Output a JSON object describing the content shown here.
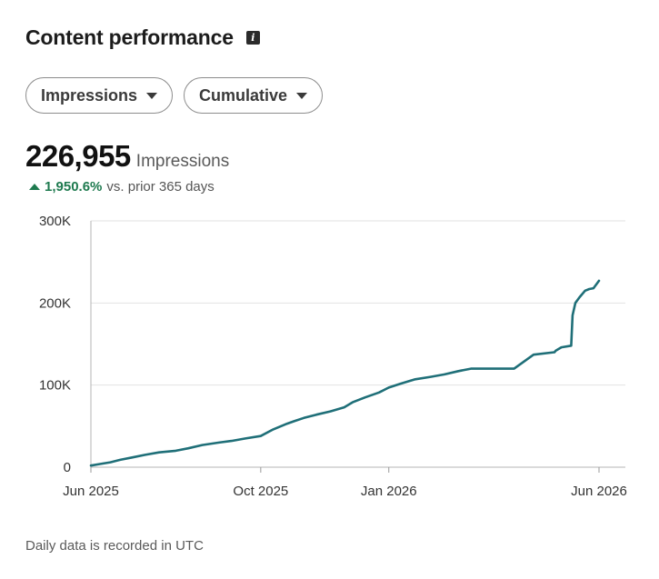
{
  "header": {
    "title": "Content performance",
    "info_icon": "info-icon"
  },
  "filters": [
    {
      "label": "Impressions",
      "icon": "chevron-down-icon"
    },
    {
      "label": "Cumulative",
      "icon": "chevron-down-icon"
    }
  ],
  "metric": {
    "value": "226,955",
    "label": "Impressions",
    "change": "1,950.6%",
    "change_label": "vs. prior 365 days",
    "change_icon": "triangle-up-icon",
    "change_color": "#1e7a4f"
  },
  "footnote": "Daily data is recorded in UTC",
  "chart_data": {
    "type": "line",
    "title": "",
    "xlabel": "",
    "ylabel": "",
    "ylim": [
      0,
      300000
    ],
    "yticks": [
      0,
      100000,
      200000,
      300000
    ],
    "ytick_labels": [
      "0",
      "100K",
      "200K",
      "300K"
    ],
    "xticks": [
      "2025-06-01",
      "2025-10-01",
      "2026-01-01",
      "2026-06-01"
    ],
    "xtick_labels": [
      "Jun 2025",
      "Oct 2025",
      "Jan 2026",
      "Jun 2026"
    ],
    "grid": true,
    "line_color": "#1f6f78",
    "series": [
      {
        "x": [
          "2025-06-01",
          "2025-06-08",
          "2025-06-15",
          "2025-06-22",
          "2025-07-01",
          "2025-07-10",
          "2025-07-20",
          "2025-08-01",
          "2025-08-10",
          "2025-08-20",
          "2025-09-01",
          "2025-09-10",
          "2025-09-20",
          "2025-10-01",
          "2025-10-10",
          "2025-10-20",
          "2025-10-25",
          "2025-11-01",
          "2025-11-10",
          "2025-11-20",
          "2025-11-30",
          "2025-12-05",
          "2025-12-06",
          "2025-12-15",
          "2025-12-25",
          "2026-01-01",
          "2026-01-10",
          "2026-01-20",
          "2026-01-31",
          "2026-02-10",
          "2026-02-20",
          "2026-03-01",
          "2026-03-10",
          "2026-03-20",
          "2026-04-01",
          "2026-04-15",
          "2026-04-30",
          "2026-05-01",
          "2026-05-05",
          "2026-05-12",
          "2026-05-13",
          "2026-05-15",
          "2026-05-18",
          "2026-05-22",
          "2026-05-25",
          "2026-05-28",
          "2026-06-01"
        ],
        "y": [
          2000,
          4000,
          6000,
          9000,
          12000,
          15000,
          18000,
          20000,
          23000,
          27000,
          30000,
          32000,
          35000,
          38000,
          46000,
          53000,
          56000,
          60000,
          64000,
          68000,
          73000,
          78000,
          79000,
          85000,
          91000,
          97000,
          102000,
          107000,
          110000,
          113000,
          117000,
          120000,
          120000,
          120000,
          120000,
          137000,
          140000,
          142000,
          146000,
          148000,
          185000,
          200000,
          207000,
          215000,
          217000,
          218000,
          227000
        ]
      }
    ]
  }
}
